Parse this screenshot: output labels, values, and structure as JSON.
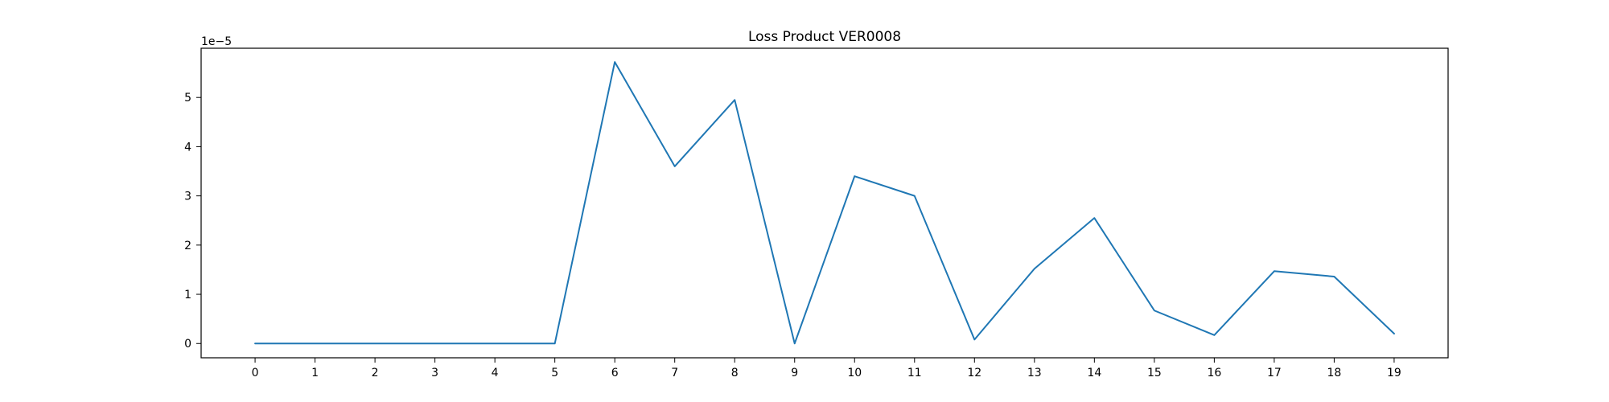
{
  "chart_data": {
    "type": "line",
    "title": "Loss Product VER0008",
    "xlabel": "",
    "ylabel": "",
    "y_scale_offset_label": "1e−5",
    "y_scale_factor": 1e-05,
    "x": [
      0,
      1,
      2,
      3,
      4,
      5,
      6,
      7,
      8,
      9,
      10,
      11,
      12,
      13,
      14,
      15,
      16,
      17,
      18,
      19
    ],
    "x_ticks": [
      "0",
      "1",
      "2",
      "3",
      "4",
      "5",
      "6",
      "7",
      "8",
      "9",
      "10",
      "11",
      "12",
      "13",
      "14",
      "15",
      "16",
      "17",
      "18",
      "19"
    ],
    "y_ticks": [
      "0",
      "1",
      "2",
      "3",
      "4",
      "5"
    ],
    "y_tick_values": [
      0,
      1,
      2,
      3,
      4,
      5
    ],
    "series": [
      {
        "color": "#1f77b4",
        "values": [
          0.0,
          0.0,
          0.0,
          0.0,
          0.0,
          0.0,
          5.72,
          3.6,
          4.95,
          0.0,
          3.4,
          3.0,
          0.08,
          1.52,
          2.55,
          0.67,
          0.17,
          1.47,
          1.36,
          0.2
        ]
      }
    ],
    "xlim": [
      -0.9,
      19.9
    ],
    "ylim": [
      -0.29,
      6.0
    ],
    "grid": false,
    "legend": "none"
  }
}
